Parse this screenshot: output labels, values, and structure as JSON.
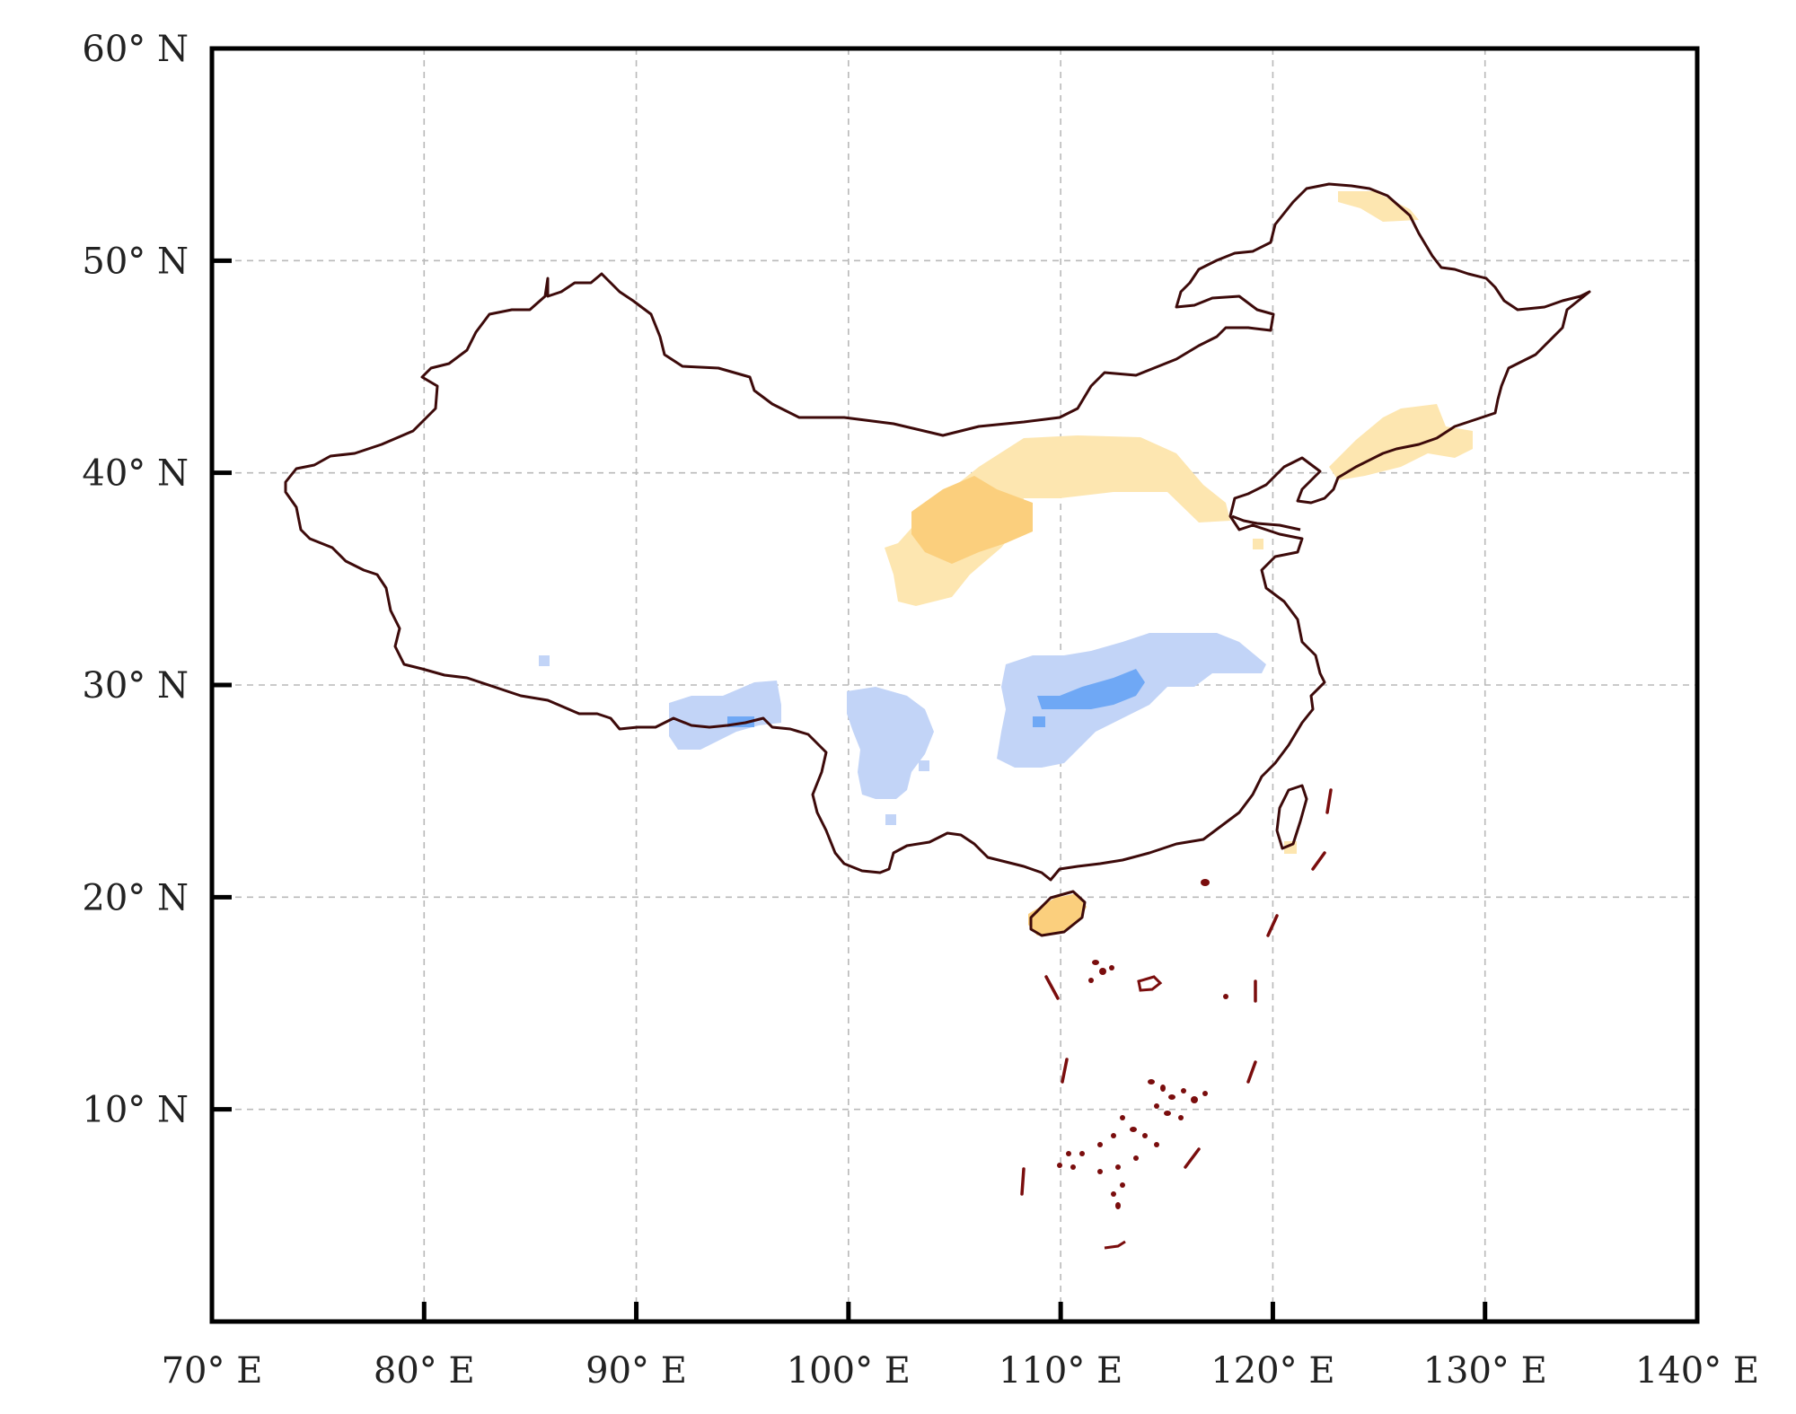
{
  "map": {
    "x_axis": {
      "ticks": [
        {
          "value": 70,
          "label": "70° E"
        },
        {
          "value": 80,
          "label": "80° E"
        },
        {
          "value": 90,
          "label": "90° E"
        },
        {
          "value": 100,
          "label": "100° E"
        },
        {
          "value": 110,
          "label": "110° E"
        },
        {
          "value": 120,
          "label": "120° E"
        },
        {
          "value": 130,
          "label": "130° E"
        },
        {
          "value": 140,
          "label": "140° E"
        }
      ],
      "range": [
        70,
        140
      ]
    },
    "y_axis": {
      "ticks": [
        {
          "value": 60,
          "label": "60° N"
        },
        {
          "value": 50,
          "label": "50° N"
        },
        {
          "value": 40,
          "label": "40° N"
        },
        {
          "value": 30,
          "label": "30° N"
        },
        {
          "value": 20,
          "label": "20° N"
        },
        {
          "value": 10,
          "label": "10° N"
        }
      ],
      "range": [
        0,
        60
      ]
    },
    "grid": true,
    "colors": {
      "positive_light": "#fde6b0",
      "positive_medium": "#fbcf7d",
      "negative_light": "#c2d4f7",
      "negative_medium": "#6fa8f5",
      "border": "#3d0a0a",
      "nine_dash_line": "#7a0d0d"
    }
  }
}
